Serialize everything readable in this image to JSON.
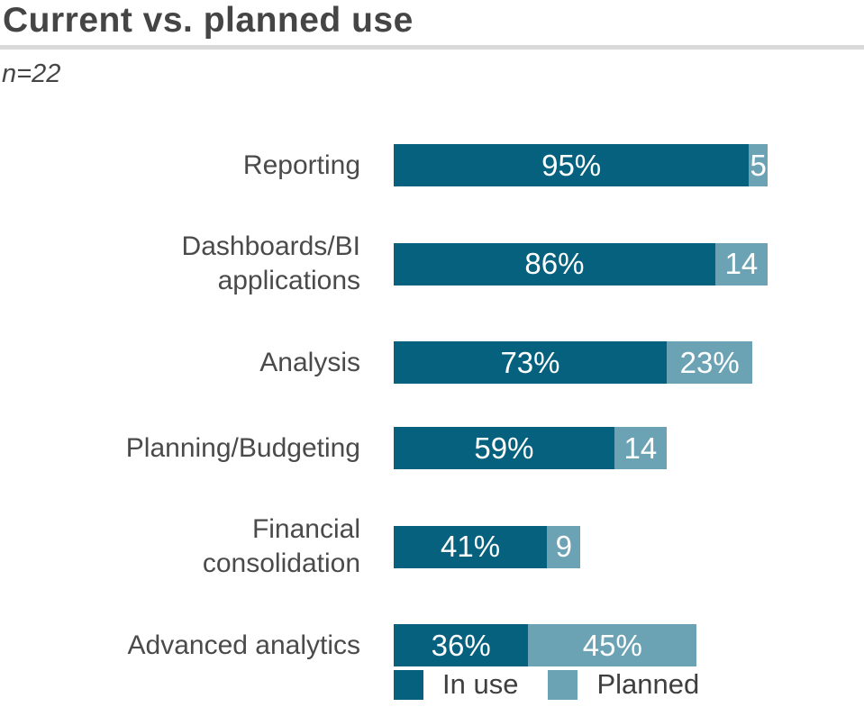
{
  "header": {
    "title": "Current vs. planned use",
    "sample_size": "n=22"
  },
  "colors": {
    "in_use": "#06617f",
    "planned": "#6ba3b4",
    "title_text": "#454545",
    "category_text": "#4a4a4a",
    "legend_text": "#3f3f3f",
    "value_text": "#ffffff",
    "divider": "#d9d9d9",
    "background": "#ffffff"
  },
  "chart_data": {
    "type": "bar",
    "orientation": "horizontal",
    "stacked": true,
    "title": "Current vs. planned use",
    "subtitle": "n=22",
    "categories": [
      "Reporting",
      "Dashboards/BI\napplications",
      "Analysis",
      "Planning/Budgeting",
      "Financial\nconsolidation",
      "Advanced analytics"
    ],
    "series": [
      {
        "name": "In use",
        "color": "#06617f",
        "values": [
          95,
          86,
          73,
          59,
          41,
          36
        ],
        "labels": [
          "95%",
          "86%",
          "73%",
          "59%",
          "41%",
          "36%"
        ]
      },
      {
        "name": "Planned",
        "color": "#6ba3b4",
        "values": [
          5,
          14,
          23,
          14,
          9,
          45
        ],
        "labels": [
          "5",
          "14",
          "23%",
          "14",
          "9",
          "45%"
        ]
      }
    ],
    "x_axis": {
      "min": 0,
      "max": 100,
      "unit": "%",
      "visible": false
    },
    "grid": false,
    "legend_position": "bottom",
    "value_labels": "inside-segment"
  },
  "legend": {
    "in_use": "In use",
    "planned": "Planned"
  }
}
